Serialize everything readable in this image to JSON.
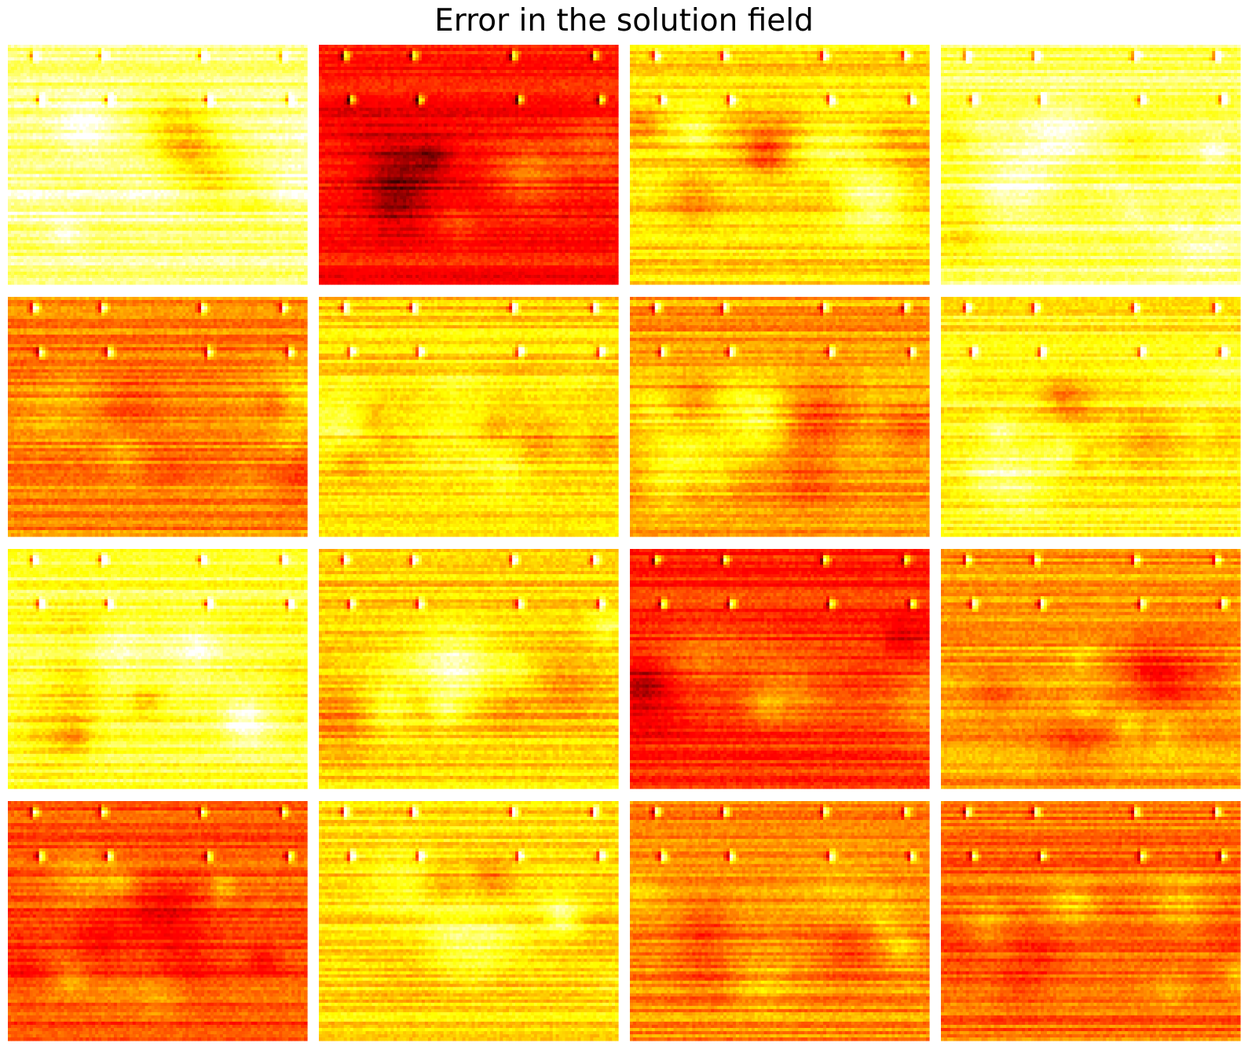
{
  "title": "Error in the solution field",
  "chart_data": {
    "type": "heatmap",
    "title": "Error in the solution field",
    "colormap": "hot",
    "axes_visible": false,
    "rows": 4,
    "cols": 4,
    "colors": {
      "dark": "#7a0000",
      "red": "#e00000",
      "orange": "#ff8000",
      "yellow": "#ffff30",
      "white": "#ffffff"
    },
    "panels": [
      {
        "row": 0,
        "col": 0,
        "mean_level": 0.88
      },
      {
        "row": 0,
        "col": 1,
        "mean_level": 0.38
      },
      {
        "row": 0,
        "col": 2,
        "mean_level": 0.7
      },
      {
        "row": 0,
        "col": 3,
        "mean_level": 0.84
      },
      {
        "row": 1,
        "col": 0,
        "mean_level": 0.55
      },
      {
        "row": 1,
        "col": 1,
        "mean_level": 0.68
      },
      {
        "row": 1,
        "col": 2,
        "mean_level": 0.6
      },
      {
        "row": 1,
        "col": 3,
        "mean_level": 0.74
      },
      {
        "row": 2,
        "col": 0,
        "mean_level": 0.8
      },
      {
        "row": 2,
        "col": 1,
        "mean_level": 0.67
      },
      {
        "row": 2,
        "col": 2,
        "mean_level": 0.42
      },
      {
        "row": 2,
        "col": 3,
        "mean_level": 0.6
      },
      {
        "row": 3,
        "col": 0,
        "mean_level": 0.48
      },
      {
        "row": 3,
        "col": 1,
        "mean_level": 0.69
      },
      {
        "row": 3,
        "col": 2,
        "mean_level": 0.57
      },
      {
        "row": 3,
        "col": 3,
        "mean_level": 0.52
      }
    ]
  }
}
